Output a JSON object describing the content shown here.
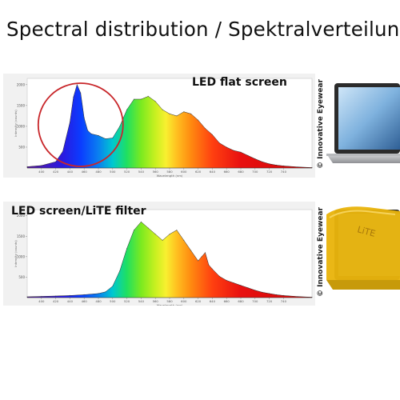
{
  "page_title": "Spectral distribution / Spektralverteilung:",
  "copyright": "© Innovative Eyewear",
  "filter_brand": "LiTE",
  "colors": {
    "highlight_circle": "#c8262a",
    "panel_bg": "#f1f1f1",
    "filter_amber": "#e9b40c"
  },
  "chart_data": [
    {
      "type": "area",
      "label": "LED flat screen",
      "xlabel": "Wavelength (nm)",
      "ylabel": "Intensity (counts)",
      "xlim": [
        380,
        780
      ],
      "x_ticks": [
        "400",
        "420",
        "440",
        "460",
        "480",
        "500",
        "520",
        "540",
        "560",
        "580",
        "600",
        "620",
        "640",
        "660",
        "680",
        "700",
        "720",
        "740"
      ],
      "y_ticks": [
        "500",
        "1000",
        "1500",
        "2000"
      ],
      "annotation": "blue peak circled",
      "x": [
        380,
        400,
        420,
        430,
        440,
        445,
        450,
        455,
        460,
        465,
        470,
        480,
        490,
        500,
        510,
        520,
        530,
        540,
        550,
        560,
        570,
        580,
        590,
        600,
        610,
        620,
        630,
        640,
        650,
        660,
        670,
        680,
        690,
        700,
        710,
        720,
        730,
        740,
        760,
        780
      ],
      "values": [
        30,
        60,
        150,
        400,
        1100,
        1700,
        2000,
        1800,
        1200,
        900,
        820,
        780,
        700,
        720,
        1000,
        1400,
        1650,
        1650,
        1720,
        1600,
        1400,
        1300,
        1250,
        1350,
        1300,
        1150,
        950,
        800,
        600,
        500,
        420,
        380,
        300,
        220,
        150,
        100,
        70,
        50,
        25,
        10
      ]
    },
    {
      "type": "area",
      "label": "LED screen/LiTE filter",
      "xlabel": "Wavelength (nm)",
      "ylabel": "Intensity (counts)",
      "xlim": [
        380,
        780
      ],
      "x_ticks": [
        "400",
        "420",
        "440",
        "460",
        "480",
        "500",
        "520",
        "540",
        "560",
        "580",
        "600",
        "620",
        "640",
        "660",
        "680",
        "700",
        "720",
        "740"
      ],
      "y_ticks": [
        "500",
        "1000",
        "1500",
        "2000"
      ],
      "x": [
        380,
        400,
        420,
        440,
        460,
        480,
        490,
        500,
        510,
        520,
        530,
        540,
        550,
        560,
        570,
        580,
        590,
        600,
        610,
        620,
        625,
        630,
        635,
        640,
        650,
        660,
        670,
        680,
        690,
        700,
        710,
        720,
        730,
        740,
        760,
        780
      ],
      "values": [
        20,
        30,
        40,
        50,
        70,
        100,
        140,
        280,
        650,
        1200,
        1650,
        1850,
        1700,
        1550,
        1400,
        1550,
        1650,
        1400,
        1150,
        900,
        1000,
        1100,
        800,
        700,
        520,
        420,
        360,
        300,
        240,
        180,
        130,
        100,
        70,
        50,
        25,
        10
      ]
    }
  ]
}
